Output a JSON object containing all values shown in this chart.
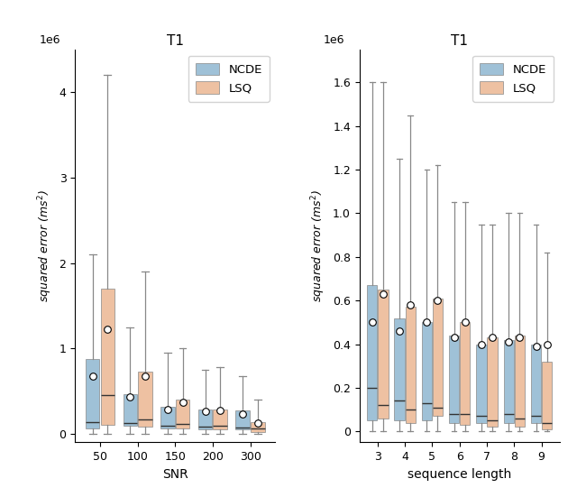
{
  "ncde_color": "#7aaac8",
  "lsq_color": "#e8a97e",
  "left_title": "T1",
  "right_title": "T1",
  "left_xlabel": "SNR",
  "right_xlabel": "sequence length",
  "ylabel": "squared error ($ms^2$)",
  "left_categories": [
    "50",
    "100",
    "150",
    "200",
    "300"
  ],
  "right_categories": [
    "3",
    "4",
    "5",
    "6",
    "7",
    "8",
    "9"
  ],
  "left_ncde_whislo": [
    0.0,
    0.0,
    0.0,
    0.0,
    0.0
  ],
  "left_ncde_q1": [
    60000.0,
    90000.0,
    60000.0,
    50000.0,
    50000.0
  ],
  "left_ncde_med": [
    140000.0,
    130000.0,
    90000.0,
    80000.0,
    70000.0
  ],
  "left_ncde_mean": [
    680000.0,
    430000.0,
    280000.0,
    260000.0,
    230000.0
  ],
  "left_ncde_q3": [
    880000.0,
    460000.0,
    320000.0,
    280000.0,
    270000.0
  ],
  "left_ncde_whishi": [
    2100000.0,
    1250000.0,
    950000.0,
    750000.0,
    680000.0
  ],
  "left_lsq_whislo": [
    0.0,
    0.0,
    0.0,
    0.0,
    0.0
  ],
  "left_lsq_q1": [
    100000.0,
    80000.0,
    60000.0,
    50000.0,
    20000.0
  ],
  "left_lsq_med": [
    450000.0,
    170000.0,
    120000.0,
    90000.0,
    60000.0
  ],
  "left_lsq_mean": [
    1220000.0,
    680000.0,
    370000.0,
    270000.0,
    130000.0
  ],
  "left_lsq_q3": [
    1700000.0,
    730000.0,
    400000.0,
    280000.0,
    140000.0
  ],
  "left_lsq_whishi": [
    4200000.0,
    1900000.0,
    1000000.0,
    780000.0,
    400000.0
  ],
  "right_ncde_whislo": [
    0.0,
    0.0,
    0.0,
    0.0,
    0.0,
    0.0,
    0.0
  ],
  "right_ncde_q1": [
    50000.0,
    50000.0,
    50000.0,
    40000.0,
    40000.0,
    40000.0,
    40000.0
  ],
  "right_ncde_med": [
    200000.0,
    140000.0,
    130000.0,
    80000.0,
    70000.0,
    80000.0,
    70000.0
  ],
  "right_ncde_mean": [
    500000.0,
    460000.0,
    500000.0,
    430000.0,
    400000.0,
    410000.0,
    390000.0
  ],
  "right_ncde_q3": [
    670000.0,
    520000.0,
    500000.0,
    440000.0,
    400000.0,
    420000.0,
    400000.0
  ],
  "right_ncde_whishi": [
    1600000.0,
    1250000.0,
    1200000.0,
    1050000.0,
    950000.0,
    1000000.0,
    950000.0
  ],
  "right_lsq_whislo": [
    0.0,
    0.0,
    0.0,
    0.0,
    0.0,
    0.0,
    0.0
  ],
  "right_lsq_q1": [
    60000.0,
    40000.0,
    70000.0,
    30000.0,
    20000.0,
    20000.0,
    10000.0
  ],
  "right_lsq_med": [
    120000.0,
    100000.0,
    110000.0,
    80000.0,
    50000.0,
    60000.0,
    40000.0
  ],
  "right_lsq_mean": [
    630000.0,
    580000.0,
    600000.0,
    500000.0,
    430000.0,
    430000.0,
    400000.0
  ],
  "right_lsq_q3": [
    650000.0,
    570000.0,
    610000.0,
    500000.0,
    430000.0,
    440000.0,
    320000.0
  ],
  "right_lsq_whishi": [
    1600000.0,
    1450000.0,
    1220000.0,
    1050000.0,
    950000.0,
    1000000.0,
    820000.0
  ]
}
